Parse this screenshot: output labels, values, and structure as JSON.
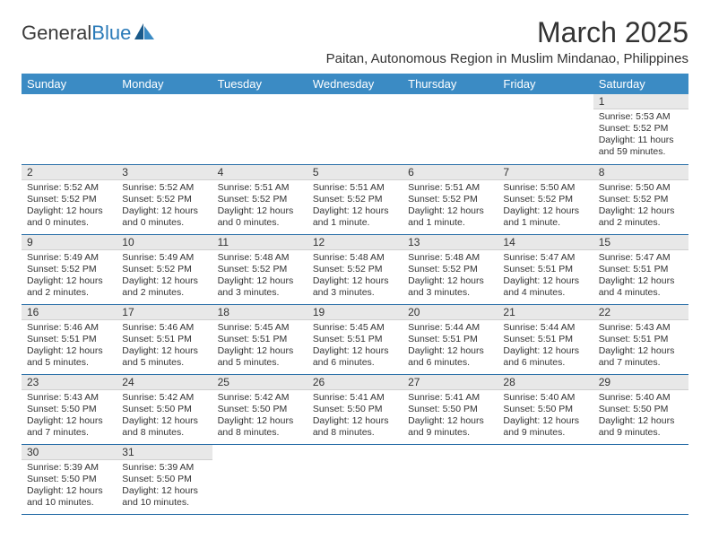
{
  "logo": {
    "textDark": "General",
    "textBlue": "Blue"
  },
  "title": "March 2025",
  "subtitle": "Paitan, Autonomous Region in Muslim Mindanao, Philippines",
  "colors": {
    "headerBg": "#3b8bc4",
    "headerText": "#ffffff",
    "dayNumBg": "#e8e8e8",
    "borderColor": "#2a6fa8",
    "textColor": "#333333",
    "logoBlue": "#2a7ab8"
  },
  "weekdays": [
    "Sunday",
    "Monday",
    "Tuesday",
    "Wednesday",
    "Thursday",
    "Friday",
    "Saturday"
  ],
  "weeks": [
    [
      null,
      null,
      null,
      null,
      null,
      null,
      {
        "n": "1",
        "sr": "Sunrise: 5:53 AM",
        "ss": "Sunset: 5:52 PM",
        "dl": "Daylight: 11 hours and 59 minutes."
      }
    ],
    [
      {
        "n": "2",
        "sr": "Sunrise: 5:52 AM",
        "ss": "Sunset: 5:52 PM",
        "dl": "Daylight: 12 hours and 0 minutes."
      },
      {
        "n": "3",
        "sr": "Sunrise: 5:52 AM",
        "ss": "Sunset: 5:52 PM",
        "dl": "Daylight: 12 hours and 0 minutes."
      },
      {
        "n": "4",
        "sr": "Sunrise: 5:51 AM",
        "ss": "Sunset: 5:52 PM",
        "dl": "Daylight: 12 hours and 0 minutes."
      },
      {
        "n": "5",
        "sr": "Sunrise: 5:51 AM",
        "ss": "Sunset: 5:52 PM",
        "dl": "Daylight: 12 hours and 1 minute."
      },
      {
        "n": "6",
        "sr": "Sunrise: 5:51 AM",
        "ss": "Sunset: 5:52 PM",
        "dl": "Daylight: 12 hours and 1 minute."
      },
      {
        "n": "7",
        "sr": "Sunrise: 5:50 AM",
        "ss": "Sunset: 5:52 PM",
        "dl": "Daylight: 12 hours and 1 minute."
      },
      {
        "n": "8",
        "sr": "Sunrise: 5:50 AM",
        "ss": "Sunset: 5:52 PM",
        "dl": "Daylight: 12 hours and 2 minutes."
      }
    ],
    [
      {
        "n": "9",
        "sr": "Sunrise: 5:49 AM",
        "ss": "Sunset: 5:52 PM",
        "dl": "Daylight: 12 hours and 2 minutes."
      },
      {
        "n": "10",
        "sr": "Sunrise: 5:49 AM",
        "ss": "Sunset: 5:52 PM",
        "dl": "Daylight: 12 hours and 2 minutes."
      },
      {
        "n": "11",
        "sr": "Sunrise: 5:48 AM",
        "ss": "Sunset: 5:52 PM",
        "dl": "Daylight: 12 hours and 3 minutes."
      },
      {
        "n": "12",
        "sr": "Sunrise: 5:48 AM",
        "ss": "Sunset: 5:52 PM",
        "dl": "Daylight: 12 hours and 3 minutes."
      },
      {
        "n": "13",
        "sr": "Sunrise: 5:48 AM",
        "ss": "Sunset: 5:52 PM",
        "dl": "Daylight: 12 hours and 3 minutes."
      },
      {
        "n": "14",
        "sr": "Sunrise: 5:47 AM",
        "ss": "Sunset: 5:51 PM",
        "dl": "Daylight: 12 hours and 4 minutes."
      },
      {
        "n": "15",
        "sr": "Sunrise: 5:47 AM",
        "ss": "Sunset: 5:51 PM",
        "dl": "Daylight: 12 hours and 4 minutes."
      }
    ],
    [
      {
        "n": "16",
        "sr": "Sunrise: 5:46 AM",
        "ss": "Sunset: 5:51 PM",
        "dl": "Daylight: 12 hours and 5 minutes."
      },
      {
        "n": "17",
        "sr": "Sunrise: 5:46 AM",
        "ss": "Sunset: 5:51 PM",
        "dl": "Daylight: 12 hours and 5 minutes."
      },
      {
        "n": "18",
        "sr": "Sunrise: 5:45 AM",
        "ss": "Sunset: 5:51 PM",
        "dl": "Daylight: 12 hours and 5 minutes."
      },
      {
        "n": "19",
        "sr": "Sunrise: 5:45 AM",
        "ss": "Sunset: 5:51 PM",
        "dl": "Daylight: 12 hours and 6 minutes."
      },
      {
        "n": "20",
        "sr": "Sunrise: 5:44 AM",
        "ss": "Sunset: 5:51 PM",
        "dl": "Daylight: 12 hours and 6 minutes."
      },
      {
        "n": "21",
        "sr": "Sunrise: 5:44 AM",
        "ss": "Sunset: 5:51 PM",
        "dl": "Daylight: 12 hours and 6 minutes."
      },
      {
        "n": "22",
        "sr": "Sunrise: 5:43 AM",
        "ss": "Sunset: 5:51 PM",
        "dl": "Daylight: 12 hours and 7 minutes."
      }
    ],
    [
      {
        "n": "23",
        "sr": "Sunrise: 5:43 AM",
        "ss": "Sunset: 5:50 PM",
        "dl": "Daylight: 12 hours and 7 minutes."
      },
      {
        "n": "24",
        "sr": "Sunrise: 5:42 AM",
        "ss": "Sunset: 5:50 PM",
        "dl": "Daylight: 12 hours and 8 minutes."
      },
      {
        "n": "25",
        "sr": "Sunrise: 5:42 AM",
        "ss": "Sunset: 5:50 PM",
        "dl": "Daylight: 12 hours and 8 minutes."
      },
      {
        "n": "26",
        "sr": "Sunrise: 5:41 AM",
        "ss": "Sunset: 5:50 PM",
        "dl": "Daylight: 12 hours and 8 minutes."
      },
      {
        "n": "27",
        "sr": "Sunrise: 5:41 AM",
        "ss": "Sunset: 5:50 PM",
        "dl": "Daylight: 12 hours and 9 minutes."
      },
      {
        "n": "28",
        "sr": "Sunrise: 5:40 AM",
        "ss": "Sunset: 5:50 PM",
        "dl": "Daylight: 12 hours and 9 minutes."
      },
      {
        "n": "29",
        "sr": "Sunrise: 5:40 AM",
        "ss": "Sunset: 5:50 PM",
        "dl": "Daylight: 12 hours and 9 minutes."
      }
    ],
    [
      {
        "n": "30",
        "sr": "Sunrise: 5:39 AM",
        "ss": "Sunset: 5:50 PM",
        "dl": "Daylight: 12 hours and 10 minutes."
      },
      {
        "n": "31",
        "sr": "Sunrise: 5:39 AM",
        "ss": "Sunset: 5:50 PM",
        "dl": "Daylight: 12 hours and 10 minutes."
      },
      null,
      null,
      null,
      null,
      null
    ]
  ]
}
